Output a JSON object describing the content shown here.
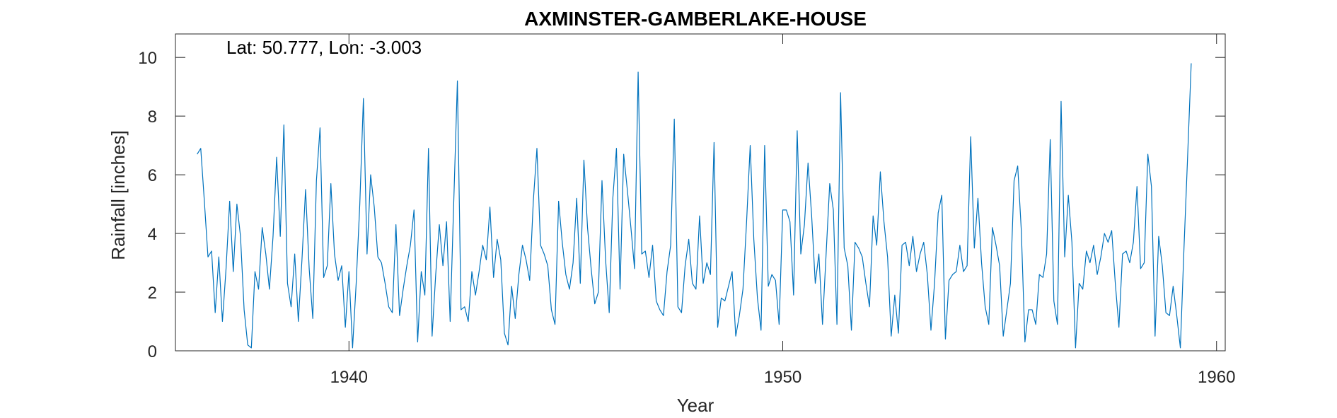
{
  "chart_data": {
    "type": "line",
    "title": "AXMINSTER-GAMBERLAKE-HOUSE",
    "annotation": "Lat: 50.777, Lon: -3.003",
    "xlabel": "Year",
    "ylabel": "Rainfall [inches]",
    "xlim": [
      1936,
      1960.2
    ],
    "ylim": [
      0,
      10.8
    ],
    "xticks": [
      1940,
      1950,
      1960
    ],
    "yticks": [
      0,
      2,
      4,
      6,
      8,
      10
    ],
    "grid": false,
    "series": [
      {
        "color": "#0072BD",
        "start_year": 1936.5,
        "months_step": 0.08333,
        "values": [
          6.7,
          6.9,
          5.1,
          3.2,
          3.4,
          1.3,
          3.2,
          1.0,
          2.8,
          5.1,
          2.7,
          5.0,
          3.9,
          1.4,
          0.2,
          0.1,
          2.7,
          2.1,
          4.2,
          3.3,
          2.1,
          3.9,
          6.6,
          3.9,
          7.7,
          2.3,
          1.5,
          3.3,
          1.0,
          3.1,
          5.5,
          2.8,
          1.1,
          5.8,
          7.6,
          2.5,
          2.9,
          5.7,
          3.3,
          2.4,
          2.9,
          0.8,
          2.7,
          0.1,
          2.3,
          5.0,
          8.6,
          3.3,
          6.0,
          4.9,
          3.2,
          3.0,
          2.3,
          1.5,
          1.3,
          4.3,
          1.2,
          2.1,
          2.9,
          3.6,
          4.8,
          0.3,
          2.7,
          1.9,
          6.9,
          0.5,
          2.6,
          4.3,
          2.9,
          4.4,
          1.0,
          5.1,
          9.2,
          1.4,
          1.5,
          1.0,
          2.7,
          1.9,
          2.7,
          3.6,
          3.1,
          4.9,
          2.5,
          3.8,
          3.1,
          0.6,
          0.2,
          2.2,
          1.1,
          2.6,
          3.6,
          3.1,
          2.4,
          5.1,
          6.9,
          3.6,
          3.3,
          2.9,
          1.4,
          0.9,
          5.1,
          3.7,
          2.6,
          2.1,
          3.0,
          5.2,
          2.3,
          6.5,
          4.2,
          2.8,
          1.6,
          2.0,
          5.8,
          3.1,
          1.3,
          5.2,
          6.9,
          2.1,
          6.7,
          5.5,
          4.2,
          2.8,
          9.5,
          3.3,
          3.4,
          2.5,
          3.6,
          1.7,
          1.4,
          1.2,
          2.7,
          3.6,
          7.9,
          1.5,
          1.3,
          2.9,
          3.8,
          2.3,
          2.1,
          4.6,
          2.3,
          3.0,
          2.6,
          7.1,
          0.8,
          1.8,
          1.7,
          2.2,
          2.7,
          0.5,
          1.2,
          2.1,
          4.4,
          7.0,
          3.8,
          1.8,
          0.7,
          7.0,
          2.2,
          2.6,
          2.4,
          0.9,
          4.8,
          4.8,
          4.4,
          1.9,
          7.5,
          3.3,
          4.3,
          6.4,
          4.6,
          2.3,
          3.3,
          0.9,
          3.3,
          5.7,
          4.8,
          0.9,
          8.8,
          3.5,
          2.9,
          0.7,
          3.7,
          3.5,
          3.2,
          2.3,
          1.5,
          4.6,
          3.6,
          6.1,
          4.4,
          3.2,
          0.5,
          1.9,
          0.6,
          3.6,
          3.7,
          2.9,
          3.9,
          2.7,
          3.3,
          3.7,
          2.6,
          0.7,
          2.3,
          4.7,
          5.3,
          0.4,
          2.4,
          2.6,
          2.7,
          3.6,
          2.7,
          2.9,
          7.3,
          3.5,
          5.2,
          3.0,
          1.5,
          0.9,
          4.2,
          3.6,
          2.9,
          0.5,
          1.4,
          2.3,
          5.8,
          6.3,
          4.1,
          0.3,
          1.4,
          1.4,
          0.9,
          2.6,
          2.5,
          3.3,
          7.2,
          1.7,
          0.9,
          8.5,
          3.2,
          5.3,
          3.7,
          0.1,
          2.3,
          2.1,
          3.4,
          3.0,
          3.6,
          2.6,
          3.2,
          4.0,
          3.7,
          4.1,
          2.3,
          0.8,
          3.3,
          3.4,
          3.0,
          3.7,
          5.6,
          2.8,
          3.0,
          6.7,
          5.6,
          0.5,
          3.9,
          2.9,
          1.3,
          1.2,
          2.2,
          1.2,
          0.1,
          3.5,
          6.6,
          9.8
        ]
      }
    ]
  }
}
